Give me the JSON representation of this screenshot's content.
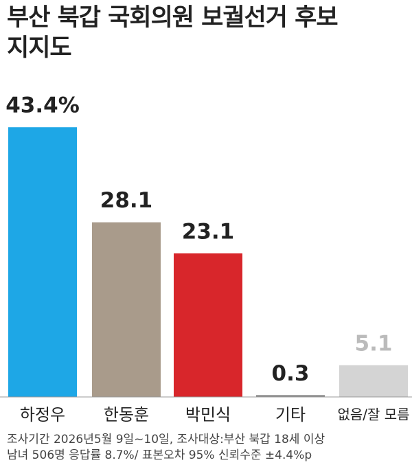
{
  "chart_data": {
    "type": "bar",
    "title": "부산 북갑 국회의원 보궐선거 후보 지지도",
    "categories": [
      "하정우",
      "한동훈",
      "박민식",
      "기타",
      "없음/잘 모름"
    ],
    "values": [
      43.4,
      28.1,
      23.1,
      0.3,
      5.1
    ],
    "value_labels": [
      "43.4%",
      "28.1",
      "23.1",
      "0.3",
      "5.1"
    ],
    "colors": [
      "#1ea7e6",
      "#a99b8b",
      "#d8262b",
      "#8a8a8a",
      "#d4d4d4"
    ],
    "notes": [
      "조사기간 2026년5월 9일~10일, 조사대상:부산 북갑 18세 이상",
      "남녀 506명   응답률 8.7%/ 표본오차 95% 신뢰수준 ±4.4%p"
    ]
  }
}
